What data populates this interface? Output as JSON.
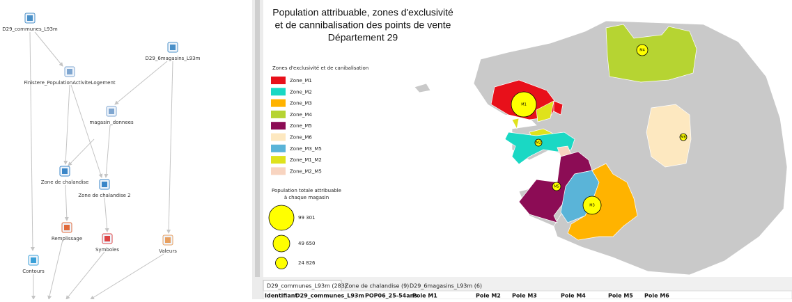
{
  "workflow": {
    "nodes": [
      {
        "label": "D29_communes_L93m"
      },
      {
        "label": "D29_6magasins_L93m"
      },
      {
        "label": "Finistere_PopulationActiviteLogement"
      },
      {
        "label": "magasin_donnees"
      },
      {
        "label": "Zone de chalandise"
      },
      {
        "label": "Zone de chalandise 2"
      },
      {
        "label": "Remplissage"
      },
      {
        "label": "Symboles"
      },
      {
        "label": "Valeurs"
      },
      {
        "label": "Contours"
      }
    ]
  },
  "map": {
    "title": [
      "Population attribuable, zones d'exclusivité",
      "et de cannibalisation des points de vente",
      "Département 29"
    ],
    "legend": {
      "title": "Zones d'exclusivité et de canibalisation",
      "items": [
        {
          "label": "Zone_M1",
          "color": "#e8101a"
        },
        {
          "label": "Zone_M2",
          "color": "#1ad8c4"
        },
        {
          "label": "Zone_M3",
          "color": "#ffb300"
        },
        {
          "label": "Zone_M4",
          "color": "#b6d432"
        },
        {
          "label": "Zone_M5",
          "color": "#8c0c55"
        },
        {
          "label": "Zone_M6",
          "color": "#fde8c0"
        },
        {
          "label": "Zone_M3_M5",
          "color": "#5ab4d8"
        },
        {
          "label": "Zone_M1_M2",
          "color": "#dfe21c"
        },
        {
          "label": "Zone_M2_M5",
          "color": "#f8d4c0"
        }
      ]
    },
    "size_legend": {
      "title": [
        "Population totale attribuable",
        "à chaque magasin"
      ],
      "items": [
        "99 301",
        "49 650",
        "24 826"
      ],
      "color": "#ffff00"
    },
    "markers": [
      "M1",
      "M2",
      "M3",
      "M4",
      "M5",
      "M6"
    ]
  },
  "tabs": [
    "D29_communes_L93m (283)",
    "Zone de chalandise (9)",
    "D29_6magasins_L93m (6)"
  ],
  "table": {
    "columns": [
      "Identifiant",
      "D29_communes_L93m",
      "POP06_25-54ans",
      "Pole M1",
      "Pole M2",
      "Pole M3",
      "Pole M4",
      "Pole M5",
      "Pole M6"
    ]
  }
}
